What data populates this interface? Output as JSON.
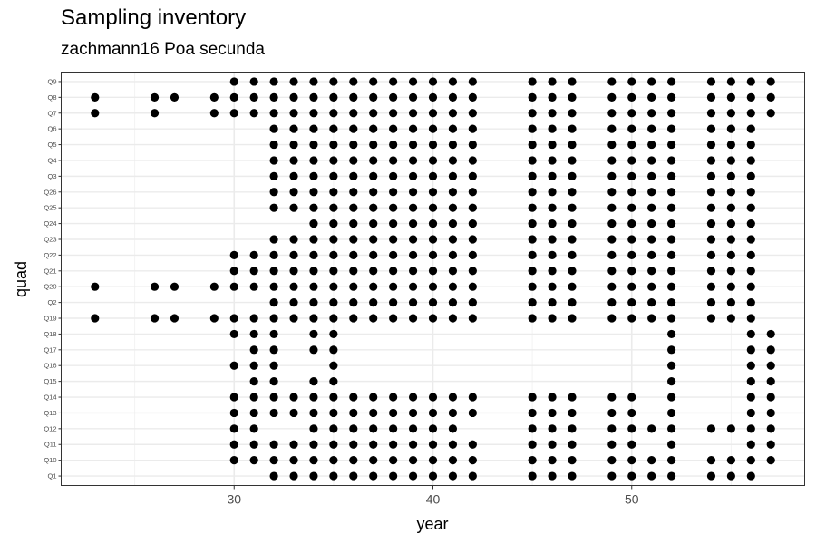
{
  "chart_data": {
    "type": "scatter",
    "title": "Sampling inventory",
    "subtitle": "zachmann16 Poa secunda",
    "xlabel": "year",
    "ylabel": "quad",
    "xlim": [
      21.3,
      58.7
    ],
    "x_ticks": [
      30,
      40,
      50
    ],
    "grid": true,
    "quads": [
      "Q1",
      "Q10",
      "Q11",
      "Q12",
      "Q13",
      "Q14",
      "Q15",
      "Q16",
      "Q17",
      "Q18",
      "Q19",
      "Q2",
      "Q20",
      "Q21",
      "Q22",
      "Q23",
      "Q24",
      "Q25",
      "Q26",
      "Q3",
      "Q4",
      "Q5",
      "Q6",
      "Q7",
      "Q8",
      "Q9"
    ],
    "points": {
      "Q9": [
        30,
        31,
        32,
        33,
        34,
        35,
        36,
        37,
        38,
        39,
        40,
        41,
        42,
        45,
        46,
        47,
        49,
        50,
        51,
        52,
        54,
        55,
        56,
        57
      ],
      "Q8": [
        23,
        26,
        27,
        29,
        30,
        31,
        32,
        33,
        34,
        35,
        36,
        37,
        38,
        39,
        40,
        41,
        42,
        45,
        46,
        47,
        49,
        50,
        51,
        52,
        54,
        55,
        56,
        57
      ],
      "Q7": [
        23,
        26,
        29,
        30,
        31,
        32,
        33,
        34,
        35,
        36,
        37,
        38,
        39,
        40,
        41,
        42,
        45,
        46,
        47,
        49,
        50,
        51,
        52,
        54,
        55,
        56,
        57
      ],
      "Q6": [
        32,
        33,
        34,
        35,
        36,
        37,
        38,
        39,
        40,
        41,
        42,
        45,
        46,
        47,
        49,
        50,
        51,
        52,
        54,
        55,
        56
      ],
      "Q5": [
        32,
        33,
        34,
        35,
        36,
        37,
        38,
        39,
        40,
        41,
        42,
        45,
        46,
        47,
        49,
        50,
        51,
        52,
        54,
        55,
        56
      ],
      "Q4": [
        32,
        33,
        34,
        35,
        36,
        37,
        38,
        39,
        40,
        41,
        42,
        45,
        46,
        47,
        49,
        50,
        51,
        52,
        54,
        55,
        56
      ],
      "Q3": [
        32,
        33,
        34,
        35,
        36,
        37,
        38,
        39,
        40,
        41,
        42,
        45,
        46,
        47,
        49,
        50,
        51,
        52,
        54,
        55,
        56
      ],
      "Q26": [
        32,
        33,
        34,
        35,
        36,
        37,
        38,
        39,
        40,
        41,
        42,
        45,
        46,
        47,
        49,
        50,
        51,
        52,
        54,
        55,
        56
      ],
      "Q25": [
        32,
        33,
        34,
        35,
        36,
        37,
        38,
        39,
        40,
        41,
        42,
        45,
        46,
        47,
        49,
        50,
        51,
        52,
        54,
        55,
        56
      ],
      "Q24": [
        34,
        35,
        36,
        37,
        38,
        39,
        40,
        41,
        42,
        45,
        46,
        47,
        49,
        50,
        51,
        52,
        54,
        55,
        56
      ],
      "Q23": [
        32,
        33,
        34,
        35,
        36,
        37,
        38,
        39,
        40,
        41,
        42,
        45,
        46,
        47,
        49,
        50,
        51,
        52,
        54,
        55,
        56
      ],
      "Q22": [
        30,
        31,
        32,
        33,
        34,
        35,
        36,
        37,
        38,
        39,
        40,
        41,
        42,
        45,
        46,
        47,
        49,
        50,
        51,
        52,
        54,
        55,
        56
      ],
      "Q21": [
        30,
        31,
        32,
        33,
        34,
        35,
        36,
        37,
        38,
        39,
        40,
        41,
        42,
        45,
        46,
        47,
        49,
        50,
        51,
        52,
        54,
        55,
        56
      ],
      "Q20": [
        23,
        26,
        27,
        29,
        30,
        31,
        32,
        33,
        34,
        35,
        36,
        37,
        38,
        39,
        40,
        41,
        42,
        45,
        46,
        47,
        49,
        50,
        51,
        52,
        54,
        55,
        56
      ],
      "Q2": [
        32,
        33,
        34,
        35,
        36,
        37,
        38,
        39,
        40,
        41,
        42,
        45,
        46,
        47,
        49,
        50,
        51,
        52,
        54,
        55,
        56
      ],
      "Q19": [
        23,
        26,
        27,
        29,
        30,
        31,
        32,
        33,
        34,
        35,
        36,
        37,
        38,
        39,
        40,
        41,
        42,
        45,
        46,
        47,
        49,
        50,
        51,
        52,
        54,
        55,
        56
      ],
      "Q18": [
        30,
        31,
        32,
        34,
        35,
        52,
        56,
        57
      ],
      "Q17": [
        31,
        32,
        34,
        35,
        52,
        56,
        57
      ],
      "Q16": [
        30,
        31,
        32,
        35,
        52,
        56,
        57
      ],
      "Q15": [
        31,
        32,
        34,
        35,
        52,
        56,
        57
      ],
      "Q14": [
        30,
        31,
        32,
        33,
        34,
        35,
        36,
        37,
        38,
        39,
        40,
        41,
        42,
        45,
        46,
        47,
        49,
        50,
        52,
        56,
        57
      ],
      "Q13": [
        30,
        31,
        32,
        33,
        34,
        35,
        36,
        37,
        38,
        39,
        40,
        41,
        42,
        45,
        46,
        47,
        49,
        50,
        52,
        56,
        57
      ],
      "Q12": [
        30,
        31,
        34,
        35,
        36,
        37,
        38,
        39,
        40,
        41,
        45,
        46,
        47,
        49,
        50,
        51,
        52,
        54,
        55,
        56,
        57
      ],
      "Q11": [
        30,
        31,
        32,
        33,
        34,
        35,
        36,
        37,
        38,
        39,
        40,
        41,
        42,
        45,
        46,
        47,
        49,
        50,
        52,
        56,
        57
      ],
      "Q10": [
        30,
        31,
        32,
        33,
        34,
        35,
        36,
        37,
        38,
        39,
        40,
        41,
        42,
        45,
        46,
        47,
        49,
        50,
        51,
        52,
        54,
        55,
        56,
        57
      ],
      "Q1": [
        32,
        33,
        34,
        35,
        36,
        37,
        38,
        39,
        40,
        41,
        42,
        45,
        46,
        47,
        49,
        50,
        51,
        52,
        54,
        55,
        56
      ]
    }
  }
}
